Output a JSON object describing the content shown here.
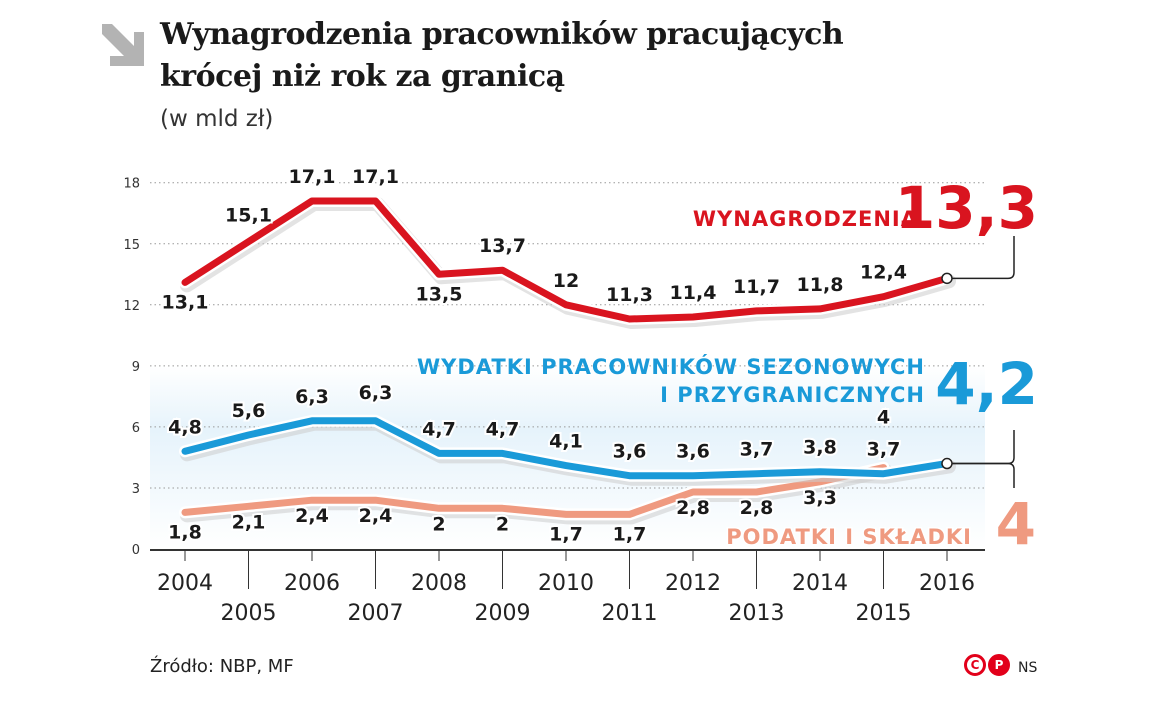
{
  "title_line1": "Wynagrodzenia pracowników pracujących",
  "title_line2": "krócej niż rok za granicą",
  "subtitle": "(w mld zł)",
  "source": "Źródło: NBP, MF",
  "author": "NS",
  "logo_left": "C",
  "logo_right": "P",
  "colors": {
    "wynagrodzenia": "#d9141f",
    "wydatki": "#1a9ad8",
    "podatki": "#ef9a80",
    "axis": "#333333",
    "grid": "#999999"
  },
  "chart_data": {
    "type": "line",
    "x": [
      2004,
      2005,
      2006,
      2007,
      2008,
      2009,
      2010,
      2011,
      2012,
      2013,
      2014,
      2015,
      2016
    ],
    "xtick_labels_top": [
      "2004",
      "2006",
      "2008",
      "2010",
      "2012",
      "2014",
      "2016"
    ],
    "xtick_labels_bottom": [
      "2005",
      "2007",
      "2009",
      "2011",
      "2013",
      "2015"
    ],
    "ylim": [
      0,
      18
    ],
    "yticks": [
      0,
      3,
      6,
      9,
      12,
      15,
      18
    ],
    "grid": true,
    "series": [
      {
        "name": "WYNAGRODZENIA",
        "key": "wynagrodzenia",
        "final_label": "13,3",
        "values": [
          13.1,
          15.1,
          17.1,
          17.1,
          13.5,
          13.7,
          12,
          11.3,
          11.4,
          11.7,
          11.8,
          12.4,
          13.3
        ],
        "labels": [
          "13,1",
          "15,1",
          "17,1",
          "17,1",
          "13,5",
          "13,7",
          "12",
          "11,3",
          "11,4",
          "11,7",
          "11,8",
          "12,4",
          null
        ]
      },
      {
        "name": "WYDATKI PRACOWNIKÓW SEZONOWYCH I PRZYGRANICZNYCH",
        "name_line1": "WYDATKI PRACOWNIKÓW SEZONOWYCH",
        "name_line2": "I PRZYGRANICZNYCH",
        "key": "wydatki",
        "final_label": "4,2",
        "values": [
          4.8,
          5.6,
          6.3,
          6.3,
          4.7,
          4.7,
          4.1,
          3.6,
          3.6,
          3.7,
          3.8,
          3.7,
          4.2
        ],
        "labels": [
          "4,8",
          "5,6",
          "6,3",
          "6,3",
          "4,7",
          "4,7",
          "4,1",
          "3,6",
          "3,6",
          "3,7",
          "3,8",
          "3,7",
          null
        ]
      },
      {
        "name": "PODATKI I SKŁADKI",
        "key": "podatki",
        "final_label": "4",
        "values": [
          1.8,
          2.1,
          2.4,
          2.4,
          2,
          2,
          1.7,
          1.7,
          2.8,
          2.8,
          3.3,
          4,
          null
        ],
        "labels": [
          "1,8",
          "2,1",
          "2,4",
          "2,4",
          "2",
          "2",
          "1,7",
          "1,7",
          "2,8",
          "2,8",
          "3,3",
          "4",
          null
        ]
      }
    ]
  }
}
